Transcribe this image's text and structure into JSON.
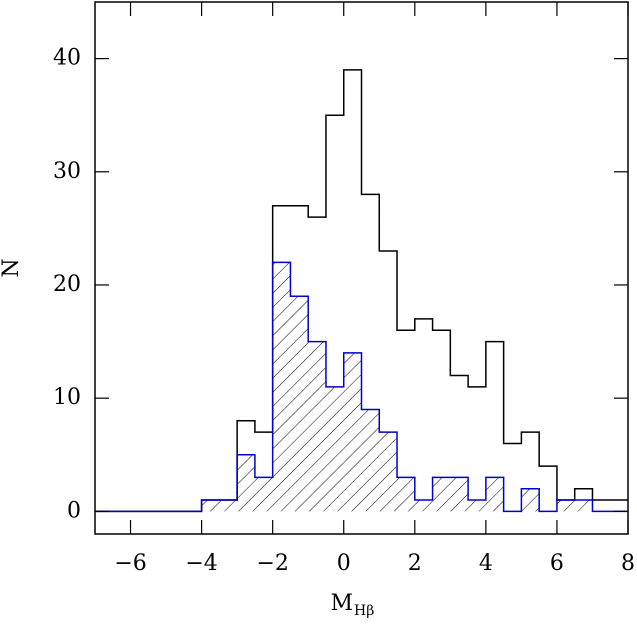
{
  "chart_data": {
    "type": "histogram",
    "x_label": "M",
    "x_label_sub": "Hβ",
    "y_label": "N",
    "bins": [
      -7,
      -6.5,
      -6,
      -5.5,
      -5,
      -4.5,
      -4,
      -3.5,
      -3,
      -2.5,
      -2,
      -1.5,
      -1,
      -0.5,
      0,
      0.5,
      1,
      1.5,
      2,
      2.5,
      3,
      3.5,
      4,
      4.5,
      5,
      5.5,
      6,
      6.5,
      7,
      7.5,
      8
    ],
    "series": [
      {
        "color": "#000000",
        "hatch": false,
        "values": [
          0,
          0,
          0,
          0,
          0,
          0,
          1,
          1,
          8,
          7,
          27,
          27,
          26,
          35,
          39,
          28,
          23,
          16,
          17,
          16,
          12,
          11,
          15,
          6,
          7,
          4,
          1,
          2,
          1,
          1
        ]
      },
      {
        "color": "#0000cc",
        "hatch": true,
        "values": [
          0,
          0,
          0,
          0,
          0,
          0,
          1,
          1,
          5,
          3,
          22,
          19,
          15,
          11,
          14,
          9,
          7,
          3,
          1,
          3,
          3,
          1,
          3,
          0,
          2,
          0,
          1,
          1,
          0,
          0
        ]
      }
    ],
    "xlim": [
      -7,
      8
    ],
    "ylim": [
      -2,
      45
    ],
    "xticks": [
      -6,
      -4,
      -2,
      0,
      2,
      4,
      6,
      8
    ],
    "yticks": [
      0,
      10,
      20,
      30,
      40
    ]
  }
}
